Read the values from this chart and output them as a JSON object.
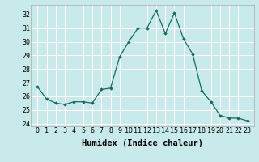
{
  "x": [
    0,
    1,
    2,
    3,
    4,
    5,
    6,
    7,
    8,
    9,
    10,
    11,
    12,
    13,
    14,
    15,
    16,
    17,
    18,
    19,
    20,
    21,
    22,
    23
  ],
  "y": [
    26.7,
    25.8,
    25.5,
    25.4,
    25.6,
    25.6,
    25.5,
    26.5,
    26.6,
    28.9,
    30.0,
    31.0,
    31.0,
    32.3,
    30.6,
    32.1,
    30.2,
    29.1,
    26.4,
    25.6,
    24.6,
    24.4,
    24.4,
    24.2
  ],
  "xlabel": "Humidex (Indice chaleur)",
  "ylim": [
    23.8,
    32.7
  ],
  "yticks": [
    24,
    25,
    26,
    27,
    28,
    29,
    30,
    31,
    32
  ],
  "xticks": [
    0,
    1,
    2,
    3,
    4,
    5,
    6,
    7,
    8,
    9,
    10,
    11,
    12,
    13,
    14,
    15,
    16,
    17,
    18,
    19,
    20,
    21,
    22,
    23
  ],
  "line_color": "#1a6b5a",
  "marker": "D",
  "marker_size": 1.8,
  "bg_color": "#c8eaea",
  "grid_color": "#ffffff",
  "spine_color": "#aaaaaa",
  "tick_fontsize": 6.0,
  "xlabel_fontsize": 7.5
}
